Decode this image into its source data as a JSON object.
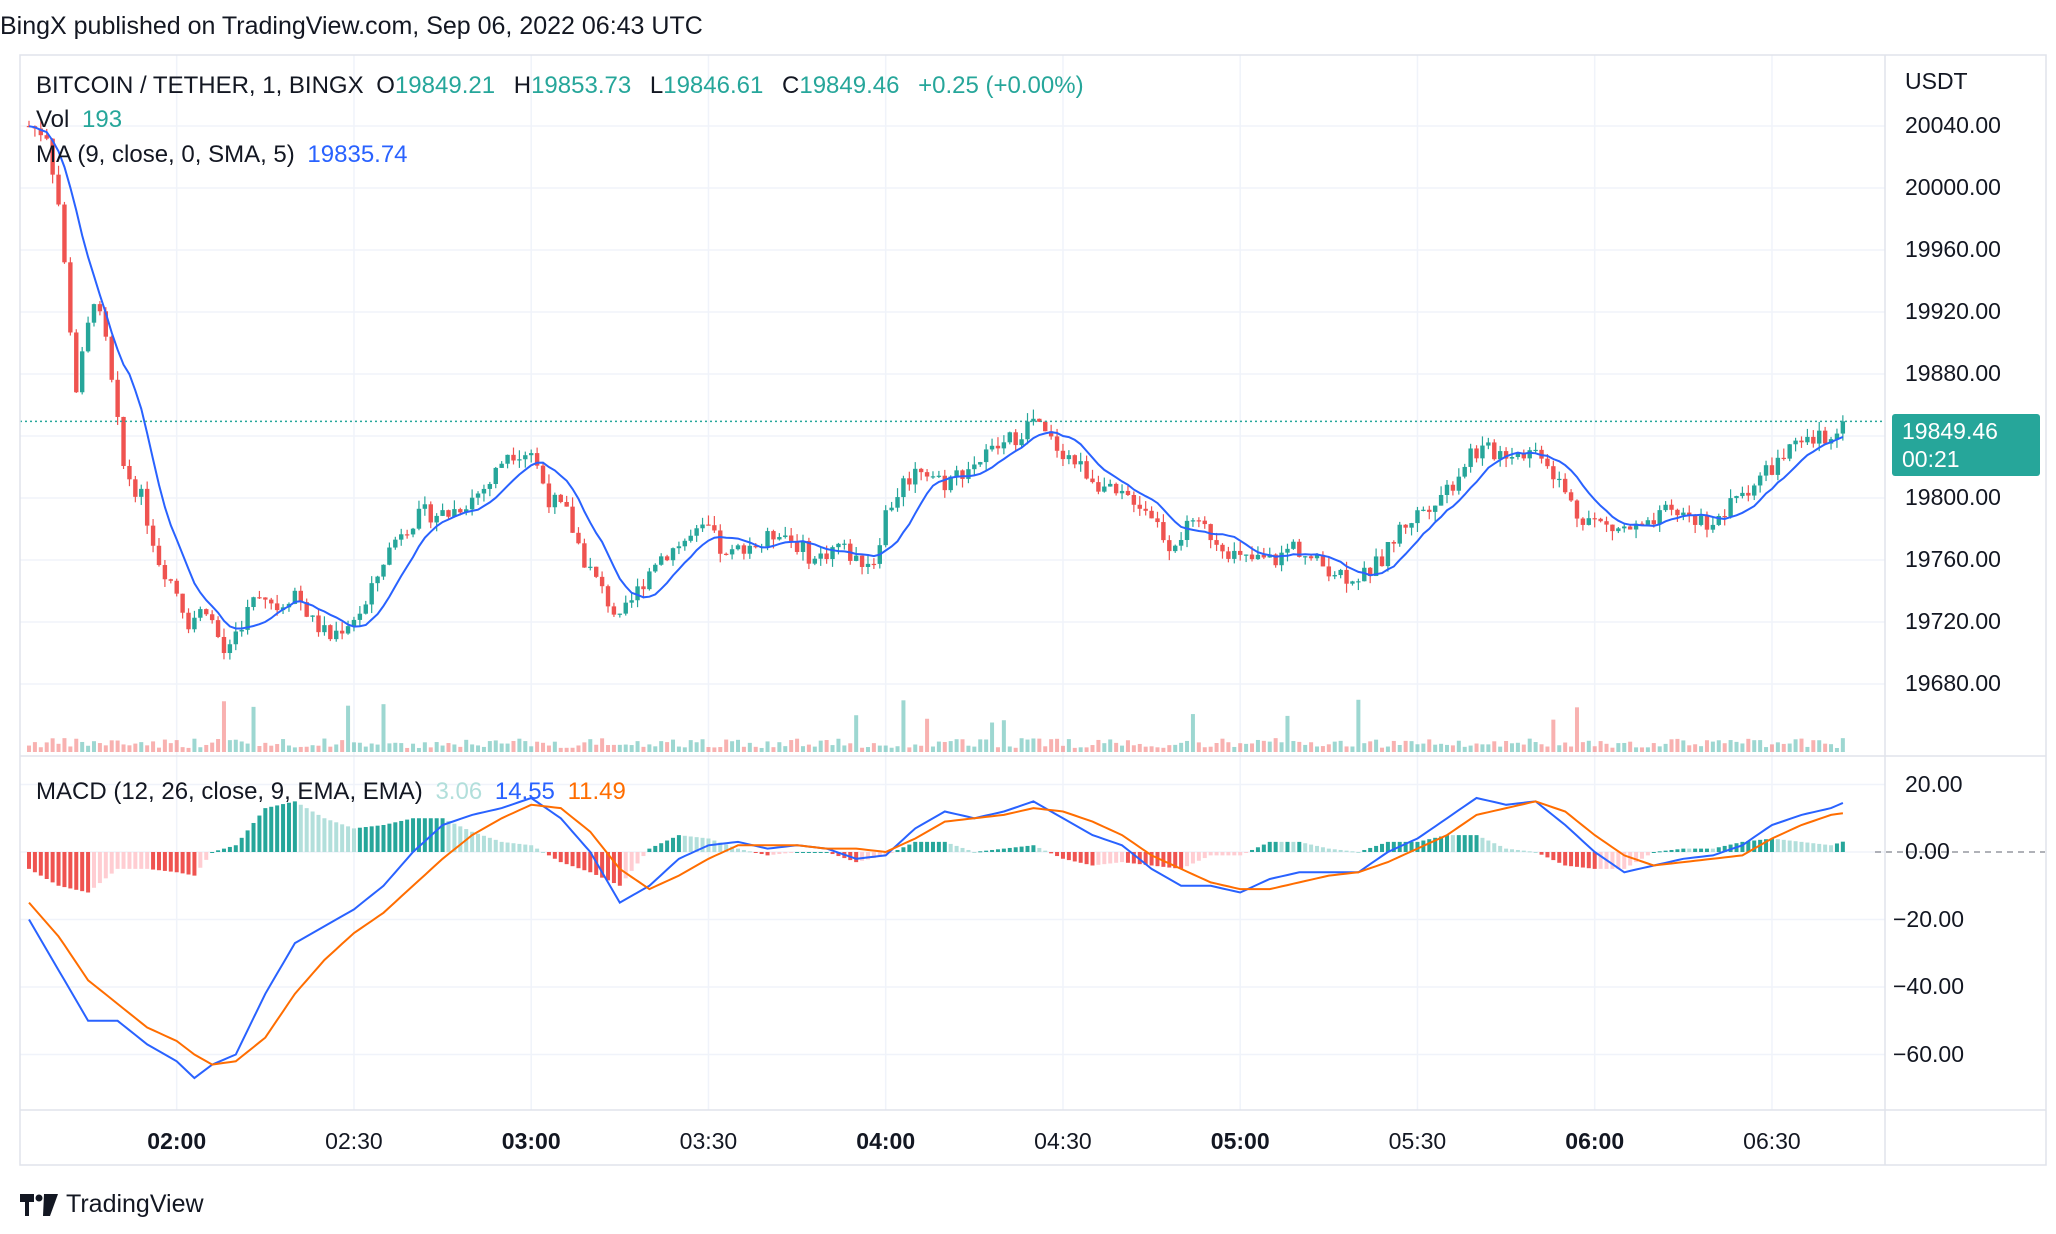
{
  "header": {
    "text": "BingX published on TradingView.com, Sep 06, 2022 06:43 UTC"
  },
  "legend": {
    "symbol": "BITCOIN / TETHER, 1, BINGX",
    "o_label": "O",
    "o": "19849.21",
    "h_label": "H",
    "h": "19853.73",
    "l_label": "L",
    "l": "19846.61",
    "c_label": "C",
    "c": "19849.46",
    "change": "+0.25 (+0.00%)",
    "vol_label": "Vol",
    "vol": "193",
    "ma_label": "MA (9, close, 0, SMA, 5)",
    "ma": "19835.74",
    "macd_label": "MACD (12, 26, close, 9, EMA, EMA)",
    "macd_hist": "3.06",
    "macd_line": "14.55",
    "macd_signal": "11.49"
  },
  "price_axis": {
    "currency": "USDT",
    "labels": [
      "20040.00",
      "20000.00",
      "19960.00",
      "19920.00",
      "19880.00",
      "19800.00",
      "19760.00",
      "19720.00",
      "19680.00"
    ]
  },
  "macd_axis": {
    "labels": [
      "20.00",
      "0.00",
      "−20.00",
      "−40.00",
      "−60.00"
    ]
  },
  "time_axis": {
    "labels": [
      {
        "text": "02:00",
        "bold": true
      },
      {
        "text": "02:30",
        "bold": false
      },
      {
        "text": "03:00",
        "bold": true
      },
      {
        "text": "03:30",
        "bold": false
      },
      {
        "text": "04:00",
        "bold": true
      },
      {
        "text": "04:30",
        "bold": false
      },
      {
        "text": "05:00",
        "bold": true
      },
      {
        "text": "05:30",
        "bold": false
      },
      {
        "text": "06:00",
        "bold": true
      },
      {
        "text": "06:30",
        "bold": false
      }
    ]
  },
  "last_price": {
    "price": "19849.46",
    "countdown": "00:21"
  },
  "footer": {
    "brand": "TradingView"
  },
  "colors": {
    "up": "#26a69a",
    "down": "#ef5350",
    "ma": "#2962ff",
    "macd": "#2962ff",
    "signal": "#ff6d00"
  },
  "chart_data": {
    "type": "candlestick",
    "title": "BITCOIN / TETHER, 1, BINGX",
    "ylabel": "USDT",
    "x_start": "01:35",
    "interval_minutes": 1,
    "price_ylim": [
      19660,
      20060
    ],
    "macd_ylim": [
      -70,
      20
    ],
    "close_keypoints": [
      [
        "01:35",
        20040
      ],
      [
        "01:38",
        20035
      ],
      [
        "01:40",
        19990
      ],
      [
        "01:43",
        19870
      ],
      [
        "01:46",
        19930
      ],
      [
        "01:48",
        19900
      ],
      [
        "01:51",
        19820
      ],
      [
        "01:54",
        19800
      ],
      [
        "01:57",
        19760
      ],
      [
        "02:00",
        19740
      ],
      [
        "02:02",
        19720
      ],
      [
        "02:05",
        19730
      ],
      [
        "02:08",
        19700
      ],
      [
        "02:11",
        19720
      ],
      [
        "02:14",
        19740
      ],
      [
        "02:17",
        19730
      ],
      [
        "02:20",
        19740
      ],
      [
        "02:23",
        19720
      ],
      [
        "02:26",
        19710
      ],
      [
        "02:29",
        19720
      ],
      [
        "02:32",
        19730
      ],
      [
        "02:35",
        19760
      ],
      [
        "02:38",
        19780
      ],
      [
        "02:42",
        19790
      ],
      [
        "02:46",
        19790
      ],
      [
        "02:50",
        19800
      ],
      [
        "02:53",
        19810
      ],
      [
        "02:56",
        19830
      ],
      [
        "03:00",
        19830
      ],
      [
        "03:03",
        19800
      ],
      [
        "03:06",
        19790
      ],
      [
        "03:09",
        19760
      ],
      [
        "03:12",
        19740
      ],
      [
        "03:15",
        19720
      ],
      [
        "03:18",
        19740
      ],
      [
        "03:21",
        19760
      ],
      [
        "03:25",
        19770
      ],
      [
        "03:30",
        19780
      ],
      [
        "03:33",
        19760
      ],
      [
        "03:36",
        19770
      ],
      [
        "03:39",
        19770
      ],
      [
        "03:42",
        19780
      ],
      [
        "03:45",
        19770
      ],
      [
        "03:48",
        19760
      ],
      [
        "03:52",
        19770
      ],
      [
        "03:55",
        19760
      ],
      [
        "03:58",
        19760
      ],
      [
        "04:00",
        19790
      ],
      [
        "04:03",
        19810
      ],
      [
        "04:06",
        19820
      ],
      [
        "04:10",
        19810
      ],
      [
        "04:14",
        19820
      ],
      [
        "04:18",
        19830
      ],
      [
        "04:22",
        19840
      ],
      [
        "04:25",
        19850
      ],
      [
        "04:27",
        19840
      ],
      [
        "04:30",
        19830
      ],
      [
        "04:33",
        19820
      ],
      [
        "04:36",
        19810
      ],
      [
        "04:39",
        19800
      ],
      [
        "04:42",
        19800
      ],
      [
        "04:45",
        19790
      ],
      [
        "04:48",
        19770
      ],
      [
        "04:51",
        19780
      ],
      [
        "04:54",
        19780
      ],
      [
        "04:57",
        19770
      ],
      [
        "05:00",
        19760
      ],
      [
        "05:03",
        19760
      ],
      [
        "05:06",
        19760
      ],
      [
        "05:09",
        19770
      ],
      [
        "05:12",
        19760
      ],
      [
        "05:15",
        19755
      ],
      [
        "05:18",
        19750
      ],
      [
        "05:21",
        19750
      ],
      [
        "05:24",
        19760
      ],
      [
        "05:27",
        19780
      ],
      [
        "05:30",
        19790
      ],
      [
        "05:33",
        19800
      ],
      [
        "05:36",
        19810
      ],
      [
        "05:39",
        19830
      ],
      [
        "05:42",
        19830
      ],
      [
        "05:45",
        19830
      ],
      [
        "05:48",
        19830
      ],
      [
        "05:51",
        19830
      ],
      [
        "05:54",
        19810
      ],
      [
        "05:57",
        19790
      ],
      [
        "06:00",
        19785
      ],
      [
        "06:03",
        19780
      ],
      [
        "06:06",
        19780
      ],
      [
        "06:09",
        19780
      ],
      [
        "06:12",
        19790
      ],
      [
        "06:15",
        19790
      ],
      [
        "06:18",
        19785
      ],
      [
        "06:21",
        19785
      ],
      [
        "06:24",
        19800
      ],
      [
        "06:27",
        19810
      ],
      [
        "06:30",
        19820
      ],
      [
        "06:33",
        19830
      ],
      [
        "06:36",
        19835
      ],
      [
        "06:39",
        19840
      ],
      [
        "06:42",
        19849.46
      ]
    ],
    "macd_keypoints": [
      [
        "01:35",
        -20,
        -15
      ],
      [
        "01:40",
        -35,
        -25
      ],
      [
        "01:45",
        -50,
        -38
      ],
      [
        "01:50",
        -50,
        -45
      ],
      [
        "01:55",
        -57,
        -52
      ],
      [
        "02:00",
        -62,
        -56
      ],
      [
        "02:03",
        -67,
        -60
      ],
      [
        "02:06",
        -63,
        -63
      ],
      [
        "02:10",
        -60,
        -62
      ],
      [
        "02:15",
        -42,
        -55
      ],
      [
        "02:20",
        -27,
        -42
      ],
      [
        "02:25",
        -22,
        -32
      ],
      [
        "02:30",
        -17,
        -24
      ],
      [
        "02:35",
        -10,
        -18
      ],
      [
        "02:40",
        0,
        -10
      ],
      [
        "02:45",
        8,
        -2
      ],
      [
        "02:50",
        11,
        5
      ],
      [
        "02:55",
        13,
        10
      ],
      [
        "03:00",
        16,
        14
      ],
      [
        "03:05",
        10,
        13
      ],
      [
        "03:10",
        0,
        6
      ],
      [
        "03:15",
        -15,
        -5
      ],
      [
        "03:20",
        -10,
        -11
      ],
      [
        "03:25",
        -2,
        -7
      ],
      [
        "03:30",
        2,
        -2
      ],
      [
        "03:35",
        3,
        2
      ],
      [
        "03:40",
        1,
        2
      ],
      [
        "03:45",
        2,
        2
      ],
      [
        "03:50",
        1,
        1
      ],
      [
        "03:55",
        -2,
        1
      ],
      [
        "04:00",
        -1,
        0
      ],
      [
        "04:05",
        7,
        4
      ],
      [
        "04:10",
        12,
        9
      ],
      [
        "04:15",
        10,
        10
      ],
      [
        "04:20",
        12,
        11
      ],
      [
        "04:25",
        15,
        13
      ],
      [
        "04:30",
        10,
        12
      ],
      [
        "04:35",
        5,
        9
      ],
      [
        "04:40",
        2,
        5
      ],
      [
        "04:45",
        -5,
        -1
      ],
      [
        "04:50",
        -10,
        -5
      ],
      [
        "04:55",
        -10,
        -9
      ],
      [
        "05:00",
        -12,
        -11
      ],
      [
        "05:05",
        -8,
        -11
      ],
      [
        "05:10",
        -6,
        -9
      ],
      [
        "05:15",
        -6,
        -7
      ],
      [
        "05:20",
        -6,
        -6
      ],
      [
        "05:25",
        0,
        -3
      ],
      [
        "05:30",
        4,
        1
      ],
      [
        "05:35",
        10,
        5
      ],
      [
        "05:40",
        16,
        11
      ],
      [
        "05:45",
        14,
        13
      ],
      [
        "05:50",
        15,
        15
      ],
      [
        "05:55",
        8,
        12
      ],
      [
        "06:00",
        0,
        5
      ],
      [
        "06:05",
        -6,
        -1
      ],
      [
        "06:10",
        -4,
        -4
      ],
      [
        "06:15",
        -2,
        -3
      ],
      [
        "06:20",
        -1,
        -2
      ],
      [
        "06:25",
        2,
        -1
      ],
      [
        "06:30",
        8,
        4
      ],
      [
        "06:35",
        11,
        8
      ],
      [
        "06:40",
        13,
        11
      ],
      [
        "06:42",
        14.55,
        11.49
      ]
    ]
  }
}
